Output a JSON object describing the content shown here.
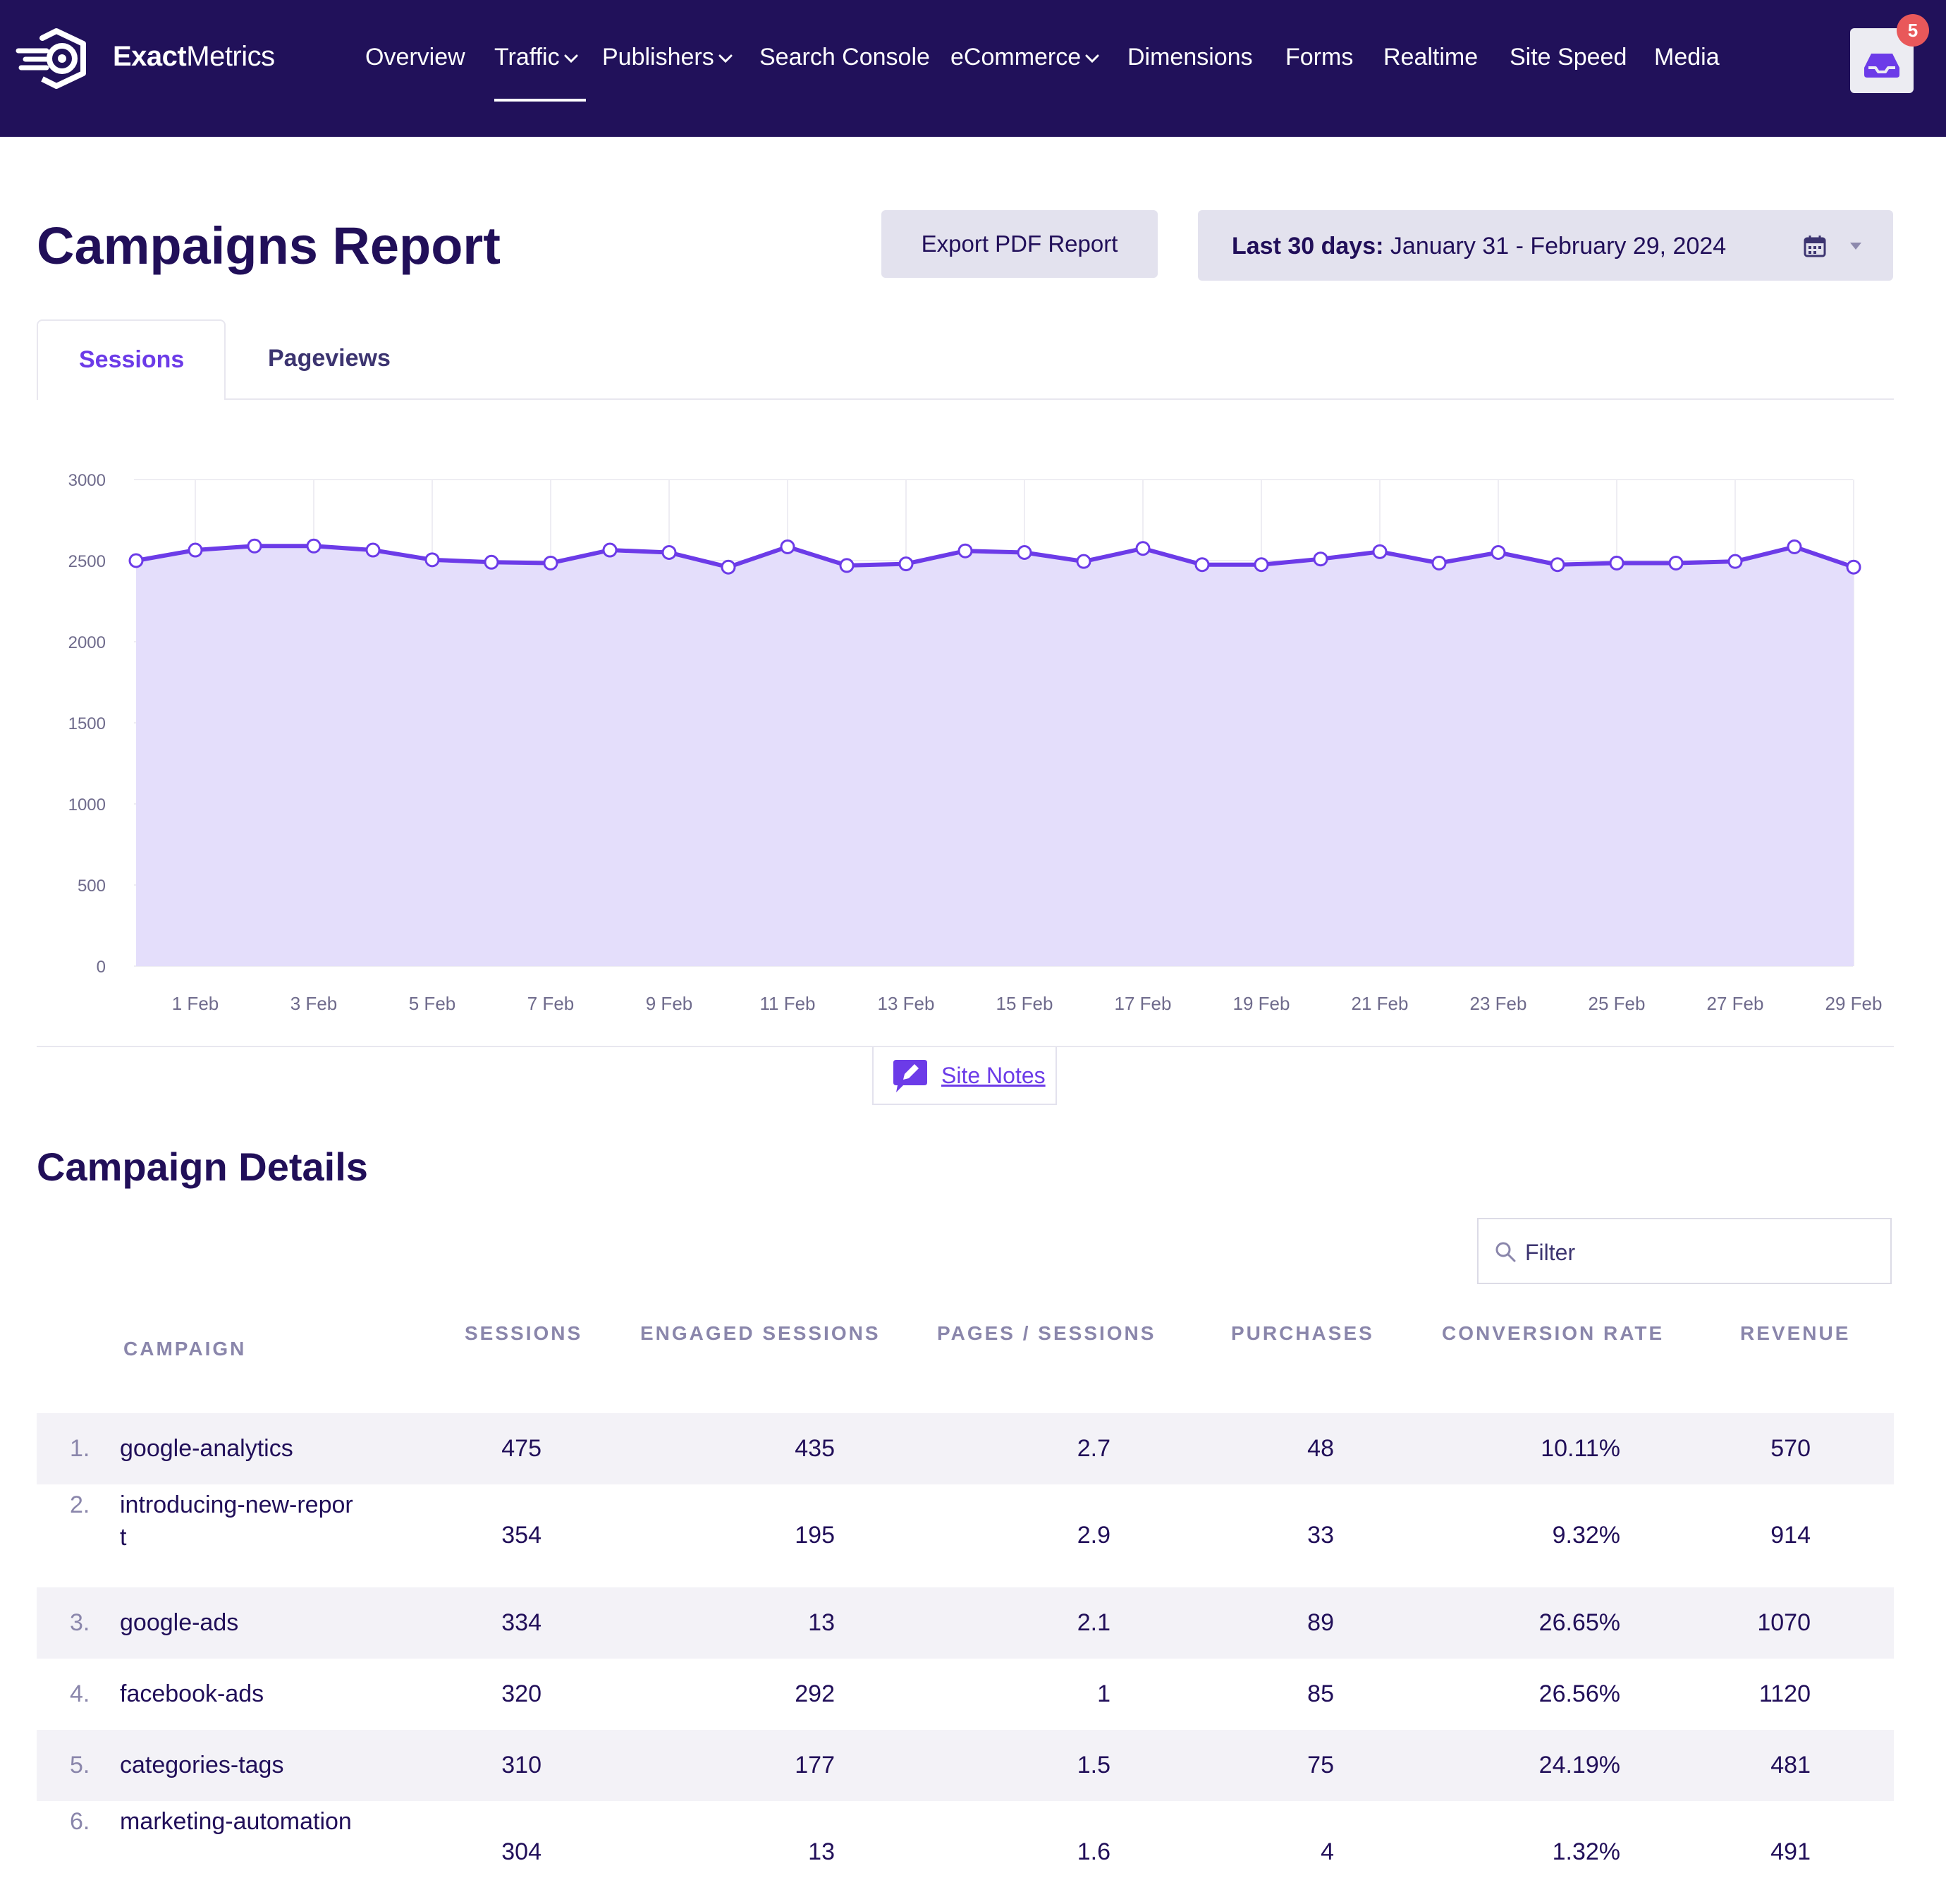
{
  "brand": {
    "name_bold": "Exact",
    "name_rest": "Metrics"
  },
  "nav": [
    {
      "label": "Overview",
      "dropdown": false
    },
    {
      "label": "Traffic",
      "dropdown": true,
      "active": true
    },
    {
      "label": "Publishers",
      "dropdown": true
    },
    {
      "label": "Search Console",
      "dropdown": false
    },
    {
      "label": "eCommerce",
      "dropdown": true
    },
    {
      "label": "Dimensions",
      "dropdown": false
    },
    {
      "label": "Forms",
      "dropdown": false
    },
    {
      "label": "Realtime",
      "dropdown": false
    },
    {
      "label": "Site Speed",
      "dropdown": false
    },
    {
      "label": "Media",
      "dropdown": false
    }
  ],
  "notifications": {
    "count": "5"
  },
  "page": {
    "title": "Campaigns Report"
  },
  "toolbar": {
    "export_label": "Export PDF Report",
    "date_prefix": "Last 30 days:",
    "date_range": "January 31 - February 29, 2024"
  },
  "tabs": [
    {
      "label": "Sessions",
      "active": true
    },
    {
      "label": "Pageviews",
      "active": false
    }
  ],
  "chart_data": {
    "type": "area",
    "series": [
      {
        "name": "Sessions",
        "values": [
          2500,
          2565,
          2590,
          2590,
          2565,
          2505,
          2490,
          2485,
          2565,
          2550,
          2460,
          2585,
          2470,
          2480,
          2560,
          2550,
          2495,
          2575,
          2475,
          2475,
          2510,
          2555,
          2485,
          2550,
          2475,
          2485,
          2485,
          2495,
          2585,
          2460
        ]
      }
    ],
    "x": [
      "31 Jan",
      "1 Feb",
      "2 Feb",
      "3 Feb",
      "4 Feb",
      "5 Feb",
      "6 Feb",
      "7 Feb",
      "8 Feb",
      "9 Feb",
      "10 Feb",
      "11 Feb",
      "12 Feb",
      "13 Feb",
      "14 Feb",
      "15 Feb",
      "16 Feb",
      "17 Feb",
      "18 Feb",
      "19 Feb",
      "20 Feb",
      "21 Feb",
      "22 Feb",
      "23 Feb",
      "24 Feb",
      "25 Feb",
      "26 Feb",
      "27 Feb",
      "28 Feb",
      "29 Feb"
    ],
    "xtick_labels": [
      "1 Feb",
      "3 Feb",
      "5 Feb",
      "7 Feb",
      "9 Feb",
      "11 Feb",
      "13 Feb",
      "15 Feb",
      "17 Feb",
      "19 Feb",
      "21 Feb",
      "23 Feb",
      "25 Feb",
      "27 Feb",
      "29 Feb"
    ],
    "ylim": [
      0,
      3000
    ],
    "yticks": [
      0,
      500,
      1000,
      1500,
      2000,
      2500,
      3000
    ],
    "grid": true,
    "colors": {
      "line": "#6c3be8",
      "fill": "#e4defb"
    }
  },
  "site_notes": {
    "label": "Site Notes"
  },
  "details": {
    "title": "Campaign Details",
    "filter_placeholder": "Filter",
    "columns": {
      "campaign": "CAMPAIGN",
      "sessions": "SESSIONS",
      "engaged": "ENGAGED SESSIONS",
      "pages": "PAGES / SESSIONS",
      "purchases": "PURCHASES",
      "conversion": "CONVERSION RATE",
      "revenue": "REVENUE"
    },
    "rows": [
      {
        "idx": "1.",
        "campaign": "google-analytics",
        "sessions": "475",
        "engaged": "435",
        "pages": "2.7",
        "purchases": "48",
        "conversion": "10.11%",
        "revenue": "570"
      },
      {
        "idx": "2.",
        "campaign": "introducing-new-report",
        "sessions": "354",
        "engaged": "195",
        "pages": "2.9",
        "purchases": "33",
        "conversion": "9.32%",
        "revenue": "914"
      },
      {
        "idx": "3.",
        "campaign": "google-ads",
        "sessions": "334",
        "engaged": "13",
        "pages": "2.1",
        "purchases": "89",
        "conversion": "26.65%",
        "revenue": "1070"
      },
      {
        "idx": "4.",
        "campaign": "facebook-ads",
        "sessions": "320",
        "engaged": "292",
        "pages": "1",
        "purchases": "85",
        "conversion": "26.56%",
        "revenue": "1120"
      },
      {
        "idx": "5.",
        "campaign": "categories-tags",
        "sessions": "310",
        "engaged": "177",
        "pages": "1.5",
        "purchases": "75",
        "conversion": "24.19%",
        "revenue": "481"
      },
      {
        "idx": "6.",
        "campaign": "marketing-automation",
        "sessions": "304",
        "engaged": "13",
        "pages": "1.6",
        "purchases": "4",
        "conversion": "1.32%",
        "revenue": "491"
      }
    ]
  }
}
